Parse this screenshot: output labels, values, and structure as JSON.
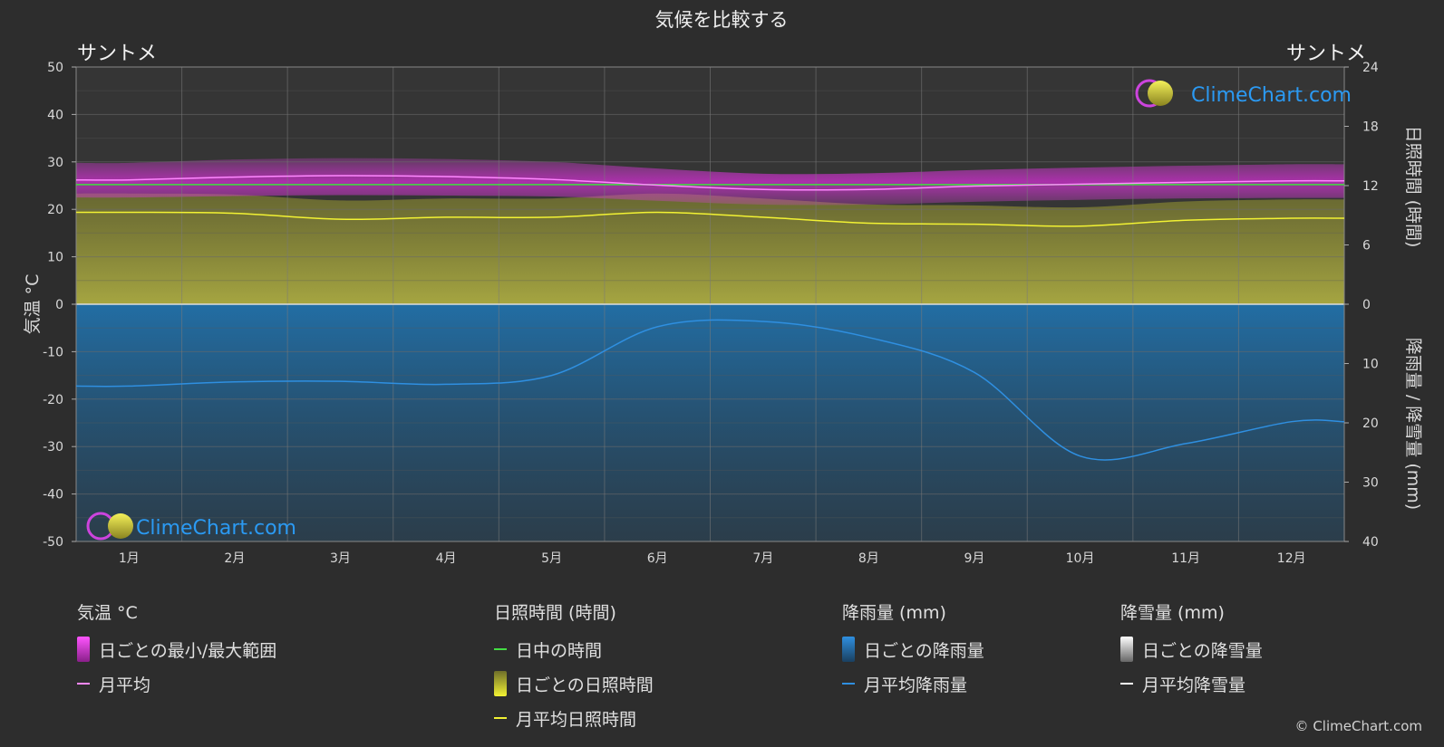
{
  "header": {
    "title": "気候を比較する",
    "location_left": "サントメ",
    "location_right": "サントメ"
  },
  "brand": {
    "name": "ClimeChart.com",
    "copyright": "© ClimeChart.com"
  },
  "colors": {
    "background": "#2d2d2d",
    "temp_range": "#d12fd1",
    "temp_mean": "#ff88ff",
    "daylight": "#44dd44",
    "sunshine_fill": "#b6b63a",
    "sunshine_mean": "#f2f233",
    "rain_fill": "#1f6fa8",
    "rain_mean": "#2f8fe0",
    "snow": "#ffffff"
  },
  "legend": {
    "temperature": {
      "title": "気温 °C",
      "range_label": "日ごとの最小/最大範囲",
      "mean_label": "月平均"
    },
    "sunshine": {
      "title": "日照時間 (時間)",
      "daylight_label": "日中の時間",
      "daily_label": "日ごとの日照時間",
      "mean_label": "月平均日照時間"
    },
    "rain": {
      "title": "降雨量 (mm)",
      "daily_label": "日ごとの降雨量",
      "mean_label": "月平均降雨量"
    },
    "snow": {
      "title": "降雪量 (mm)",
      "daily_label": "日ごとの降雪量",
      "mean_label": "月平均降雪量"
    }
  },
  "chart_data": {
    "type": "line",
    "title": "気候を比較する",
    "categories": [
      "1月",
      "2月",
      "3月",
      "4月",
      "5月",
      "6月",
      "7月",
      "8月",
      "9月",
      "10月",
      "11月",
      "12月"
    ],
    "y_left": {
      "label": "気温 °C",
      "range": [
        -50,
        50
      ],
      "ticks": [
        50,
        40,
        30,
        20,
        10,
        0,
        -10,
        -20,
        -30,
        -40,
        -50
      ]
    },
    "y_right_top": {
      "label": "日照時間 (時間)",
      "range": [
        0,
        24
      ],
      "ticks": [
        24,
        18,
        12,
        6,
        0
      ]
    },
    "y_right_bottom": {
      "label": "降雨量 / 降雪量 (mm)",
      "range": [
        0,
        40
      ],
      "ticks": [
        0,
        10,
        20,
        30,
        40
      ]
    },
    "grid": true,
    "series": [
      {
        "name": "月平均",
        "axis": "temperature",
        "values": [
          26.2,
          26.8,
          27.1,
          26.9,
          26.3,
          25.1,
          24.2,
          24.2,
          24.9,
          25.3,
          25.7,
          26.0
        ]
      },
      {
        "name": "日ごとの最小/最大範囲",
        "axis": "temperature",
        "type": "band",
        "min": [
          22.5,
          22.8,
          23.0,
          22.9,
          22.7,
          21.8,
          21.0,
          21.0,
          21.6,
          22.0,
          22.3,
          22.4
        ],
        "max": [
          29.8,
          30.5,
          30.8,
          30.6,
          30.0,
          28.6,
          27.5,
          27.6,
          28.3,
          28.8,
          29.2,
          29.5
        ]
      },
      {
        "name": "日中の時間",
        "axis": "sunshine",
        "values": [
          12.1,
          12.1,
          12.1,
          12.1,
          12.1,
          12.1,
          12.1,
          12.1,
          12.1,
          12.1,
          12.1,
          12.1
        ]
      },
      {
        "name": "月平均日照時間",
        "axis": "sunshine",
        "values": [
          9.3,
          9.2,
          8.6,
          8.8,
          8.8,
          9.3,
          8.8,
          8.2,
          8.1,
          7.9,
          8.5,
          8.7
        ]
      },
      {
        "name": "月平均降雨量",
        "axis": "rain",
        "values": [
          13.8,
          13.1,
          13.0,
          13.5,
          12.0,
          3.8,
          2.9,
          5.6,
          11.5,
          25.6,
          23.5,
          19.8
        ]
      },
      {
        "name": "月平均降雪量",
        "axis": "snow",
        "values": [
          0,
          0,
          0,
          0,
          0,
          0,
          0,
          0,
          0,
          0,
          0,
          0
        ]
      }
    ]
  }
}
